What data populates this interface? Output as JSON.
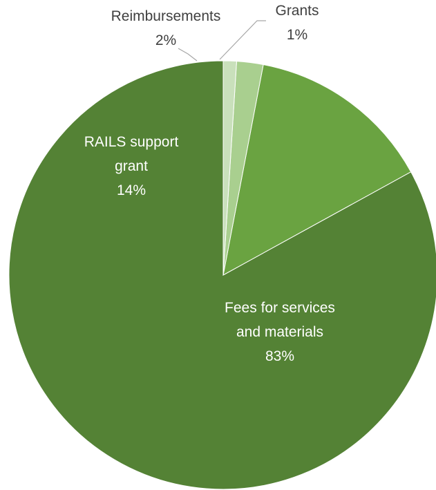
{
  "chart_data": {
    "type": "pie",
    "title": "",
    "slices": [
      {
        "label": "Fees for services and materials",
        "label_lines": [
          "Fees for services",
          "and materials"
        ],
        "percent_label": "83%",
        "value": 83,
        "color": "#548235",
        "label_color": "#ffffff"
      },
      {
        "label": "RAILS support grant",
        "label_lines": [
          "RAILS support",
          "grant"
        ],
        "percent_label": "14%",
        "value": 14,
        "color": "#6aa341",
        "label_color": "#ffffff"
      },
      {
        "label": "Reimbursements",
        "label_lines": [
          "Reimbursements"
        ],
        "percent_label": "2%",
        "value": 2,
        "color": "#a9cf8f",
        "label_color": "#404040"
      },
      {
        "label": "Grants",
        "label_lines": [
          "Grants"
        ],
        "percent_label": "1%",
        "value": 1,
        "color": "#c9e0bb",
        "label_color": "#404040"
      }
    ],
    "legend": "none"
  }
}
